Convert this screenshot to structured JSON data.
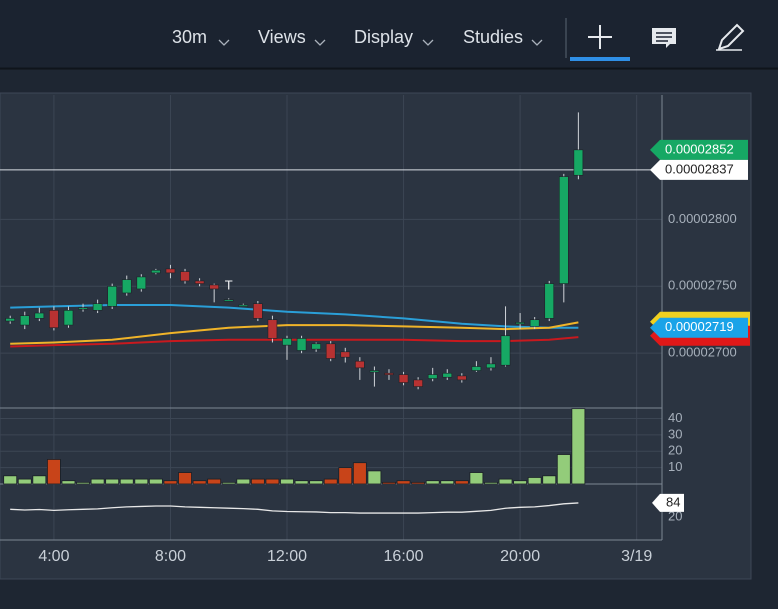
{
  "toolbar": {
    "items": [
      "30m",
      "Views",
      "Display",
      "Studies"
    ]
  },
  "chart_data": {
    "type": "candlestick",
    "x": [
      2.5,
      3,
      3.5,
      4,
      4.5,
      5,
      5.5,
      6,
      6.5,
      7,
      7.5,
      8,
      8.5,
      9,
      9.5,
      10,
      10.5,
      11,
      11.5,
      12,
      12.5,
      13,
      13.5,
      14,
      14.5,
      15,
      15.5,
      16,
      16.5,
      17,
      17.5,
      18,
      18.5,
      19,
      19.5,
      20,
      20.5,
      21,
      21.5,
      22
    ],
    "open": [
      2.724e-05,
      2.721e-05,
      2.726e-05,
      2.732e-05,
      2.721e-05,
      2.733e-05,
      2.732e-05,
      2.735e-05,
      2.745e-05,
      2.748e-05,
      2.76e-05,
      2.763e-05,
      2.761e-05,
      2.754e-05,
      2.751e-05,
      2.74e-05,
      2.736e-05,
      2.737e-05,
      2.725e-05,
      2.706e-05,
      2.702e-05,
      2.703e-05,
      2.707e-05,
      2.701e-05,
      2.694e-05,
      2.687e-05,
      2.685e-05,
      2.684e-05,
      2.68e-05,
      2.681e-05,
      2.682e-05,
      2.683e-05,
      2.687e-05,
      2.689e-05,
      2.691e-05,
      2.722e-05,
      2.72e-05,
      2.726e-05,
      2.752e-05,
      2.833e-05
    ],
    "high": [
      2.728e-05,
      2.731e-05,
      2.734e-05,
      2.735e-05,
      2.735e-05,
      2.737e-05,
      2.74e-05,
      2.752e-05,
      2.758e-05,
      2.759e-05,
      2.763e-05,
      2.766e-05,
      2.763e-05,
      2.756e-05,
      2.752e-05,
      2.741e-05,
      2.737e-05,
      2.739e-05,
      2.728e-05,
      2.713e-05,
      2.713e-05,
      2.708e-05,
      2.709e-05,
      2.704e-05,
      2.697e-05,
      2.69e-05,
      2.688e-05,
      2.686e-05,
      2.682e-05,
      2.689e-05,
      2.688e-05,
      2.685e-05,
      2.694e-05,
      2.697e-05,
      2.735e-05,
      2.73e-05,
      2.727e-05,
      2.754e-05,
      2.834e-05,
      2.88e-05
    ],
    "low": [
      2.722e-05,
      2.718e-05,
      2.724e-05,
      2.717e-05,
      2.719e-05,
      2.731e-05,
      2.73e-05,
      2.733e-05,
      2.743e-05,
      2.746e-05,
      2.759e-05,
      2.756e-05,
      2.752e-05,
      2.75e-05,
      2.738e-05,
      2.739e-05,
      2.735e-05,
      2.724e-05,
      2.708e-05,
      2.695e-05,
      2.7e-05,
      2.701e-05,
      2.694e-05,
      2.693e-05,
      2.68e-05,
      2.675e-05,
      2.68e-05,
      2.676e-05,
      2.673e-05,
      2.679e-05,
      2.68e-05,
      2.678e-05,
      2.686e-05,
      2.687e-05,
      2.69e-05,
      2.718e-05,
      2.718e-05,
      2.724e-05,
      2.738e-05,
      2.83e-05
    ],
    "close": [
      2.726e-05,
      2.728e-05,
      2.73e-05,
      2.719e-05,
      2.732e-05,
      2.734e-05,
      2.737e-05,
      2.75e-05,
      2.755e-05,
      2.757e-05,
      2.762e-05,
      2.76e-05,
      2.754e-05,
      2.752e-05,
      2.748e-05,
      2.74e-05,
      2.736e-05,
      2.726e-05,
      2.711e-05,
      2.711e-05,
      2.711e-05,
      2.707e-05,
      2.696e-05,
      2.697e-05,
      2.689e-05,
      2.687e-05,
      2.684e-05,
      2.678e-05,
      2.675e-05,
      2.684e-05,
      2.685e-05,
      2.68e-05,
      2.69e-05,
      2.692e-05,
      2.713e-05,
      2.723e-05,
      2.725e-05,
      2.752e-05,
      2.832e-05,
      2.852e-05
    ],
    "up_color": "#16a864",
    "down_color": "#b83232",
    "xlim": [
      2.15,
      24.87
    ],
    "xticks": [
      {
        "value": 4,
        "label": "4:00"
      },
      {
        "value": 8,
        "label": "8:00"
      },
      {
        "value": 12,
        "label": "12:00"
      },
      {
        "value": 16,
        "label": "16:00"
      },
      {
        "value": 20,
        "label": "20:00"
      },
      {
        "value": 24,
        "label": "3/19"
      }
    ],
    "ylim": [
      2.659e-05,
      2.893e-05
    ],
    "yticks": [
      {
        "value": 2.7e-05,
        "label": "0.00002700"
      },
      {
        "value": 2.75e-05,
        "label": "0.00002750"
      },
      {
        "value": 2.8e-05,
        "label": "0.00002800"
      }
    ],
    "grid": true,
    "moving_averages": {
      "x": [
        2.5,
        4,
        6,
        8,
        10,
        12,
        14,
        16,
        18,
        19.5,
        21,
        22
      ],
      "series": [
        {
          "color": "#2a9fd8",
          "values": [
            2.734e-05,
            2.735e-05,
            2.736e-05,
            2.736e-05,
            2.734e-05,
            2.731e-05,
            2.729e-05,
            2.726e-05,
            2.722e-05,
            2.72e-05,
            2.719e-05,
            2.719e-05
          ]
        },
        {
          "color": "#f0b429",
          "values": [
            2.707e-05,
            2.708e-05,
            2.71e-05,
            2.715e-05,
            2.719e-05,
            2.721e-05,
            2.721e-05,
            2.72e-05,
            2.719e-05,
            2.718e-05,
            2.719e-05,
            2.723e-05
          ]
        },
        {
          "color": "#c8191e",
          "values": [
            2.705e-05,
            2.706e-05,
            2.707e-05,
            2.709e-05,
            2.71e-05,
            2.71e-05,
            2.71e-05,
            2.71e-05,
            2.709e-05,
            2.709e-05,
            2.71e-05,
            2.712e-05
          ]
        }
      ]
    },
    "price_labels": [
      {
        "value": 2.852e-05,
        "label": "0.00002852",
        "color": "#16a864",
        "text_color": "#ffffff"
      },
      {
        "value": 2.837e-05,
        "label": "0.00002837",
        "color": "#ffffff",
        "text_color": "#222222"
      },
      {
        "value": 2.719e-05,
        "label": "0.00002719",
        "color": "#1aa3e8",
        "text_color": "#ffffff"
      }
    ],
    "annotations": [
      {
        "text": "T",
        "x": 10,
        "y": 2.75e-05
      }
    ],
    "volume": {
      "values": [
        5,
        3,
        5,
        15,
        2,
        1,
        3,
        3,
        3,
        3,
        3,
        2,
        7,
        2,
        3,
        1,
        3,
        3,
        3,
        3,
        2,
        2,
        3,
        10,
        13,
        8,
        1,
        2,
        1,
        2,
        2,
        2,
        7,
        1,
        3,
        2,
        4,
        5,
        18,
        46
      ],
      "up_color": "#93cc7a",
      "down_color": "#c84419",
      "ylim": [
        0,
        46.4
      ],
      "yticks": [
        10,
        20,
        30,
        40
      ]
    },
    "rsi": {
      "values": [
        55,
        52,
        54,
        50,
        53,
        55,
        57,
        62,
        66,
        68,
        70,
        70,
        66,
        64,
        62,
        60,
        58,
        55,
        48,
        45,
        44,
        43,
        40,
        40,
        38,
        38,
        38,
        38,
        38,
        40,
        42,
        42,
        46,
        50,
        60,
        64,
        66,
        72,
        80,
        84
      ],
      "color": "#e8e8e8",
      "ylim": [
        -39,
        170
      ],
      "yticks": [
        20
      ],
      "badge": 84
    }
  }
}
